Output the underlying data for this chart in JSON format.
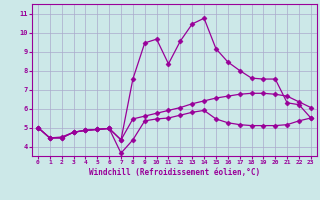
{
  "background_color": "#cce8e8",
  "grid_color": "#aaaacc",
  "line_color": "#990099",
  "xlabel": "Windchill (Refroidissement éolien,°C)",
  "xlim": [
    -0.5,
    23.5
  ],
  "ylim": [
    3.5,
    11.5
  ],
  "yticks": [
    4,
    5,
    6,
    7,
    8,
    9,
    10,
    11
  ],
  "xticks": [
    0,
    1,
    2,
    3,
    4,
    5,
    6,
    7,
    8,
    9,
    10,
    11,
    12,
    13,
    14,
    15,
    16,
    17,
    18,
    19,
    20,
    21,
    22,
    23
  ],
  "line1_x": [
    0,
    1,
    2,
    3,
    4,
    5,
    6,
    7,
    8,
    9,
    10,
    11,
    12,
    13,
    14,
    15,
    16,
    17,
    18,
    19,
    20,
    21,
    22,
    23
  ],
  "line1_y": [
    5.0,
    4.45,
    4.45,
    4.75,
    4.85,
    4.9,
    4.95,
    3.65,
    4.35,
    5.35,
    5.45,
    5.5,
    5.65,
    5.8,
    5.9,
    5.45,
    5.25,
    5.15,
    5.1,
    5.1,
    5.1,
    5.15,
    5.35,
    5.5
  ],
  "line2_x": [
    0,
    1,
    2,
    3,
    4,
    5,
    6,
    7,
    8,
    9,
    10,
    11,
    12,
    13,
    14,
    15,
    16,
    17,
    18,
    19,
    20,
    21,
    22,
    23
  ],
  "line2_y": [
    5.0,
    4.45,
    4.45,
    4.75,
    4.85,
    4.9,
    4.95,
    4.35,
    7.55,
    9.45,
    9.65,
    8.35,
    9.55,
    10.45,
    10.75,
    9.15,
    8.45,
    8.0,
    7.6,
    7.55,
    7.55,
    6.3,
    6.2,
    5.5
  ],
  "line3_x": [
    0,
    1,
    2,
    3,
    4,
    5,
    6,
    7,
    8,
    9,
    10,
    11,
    12,
    13,
    14,
    15,
    16,
    17,
    18,
    19,
    20,
    21,
    22,
    23
  ],
  "line3_y": [
    5.0,
    4.45,
    4.5,
    4.75,
    4.85,
    4.9,
    4.95,
    4.35,
    5.45,
    5.6,
    5.75,
    5.9,
    6.05,
    6.25,
    6.4,
    6.55,
    6.65,
    6.75,
    6.8,
    6.8,
    6.75,
    6.65,
    6.35,
    6.05
  ],
  "marker": "D",
  "markersize": 2.5,
  "linewidth": 0.9
}
